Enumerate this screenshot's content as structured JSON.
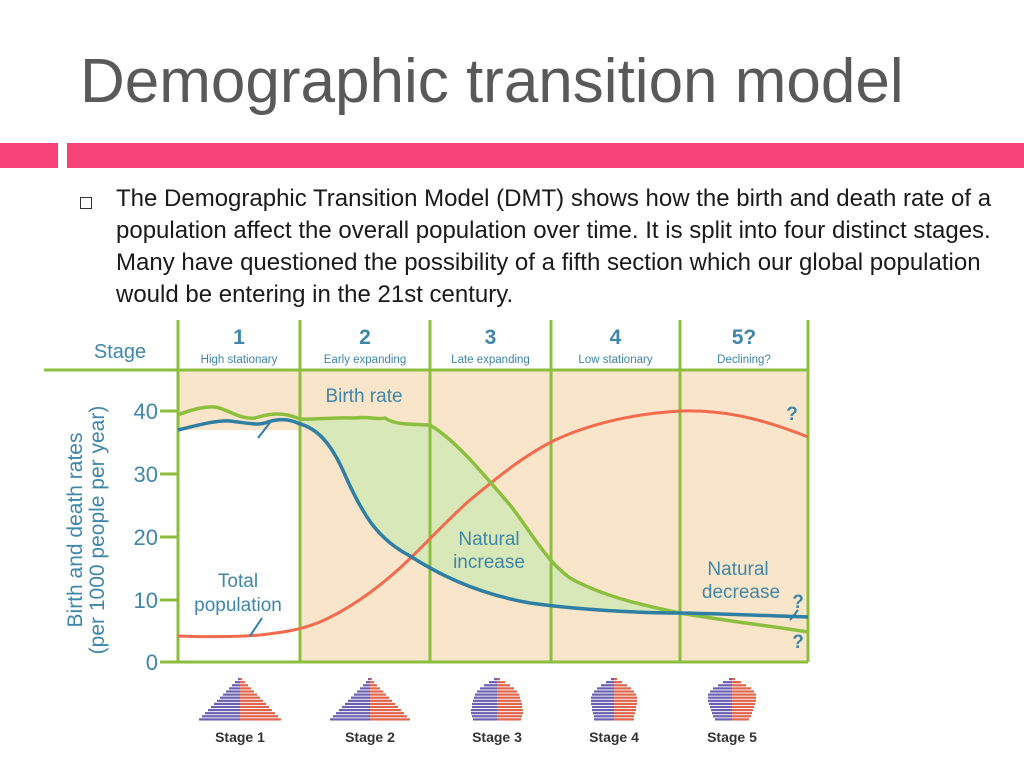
{
  "slide": {
    "title": "Demographic transition model",
    "bullet": "The Demographic Transition Model (DMT) shows how the birth and death rate of a population affect the overall population over time. It is split into four distinct stages. Many have questioned the possibility of a fifth section which our global population would be entering in the 21st century."
  },
  "diagram": {
    "stage_header": "Stage",
    "stages": [
      {
        "number": "1",
        "name": "High stationary"
      },
      {
        "number": "2",
        "name": "Early expanding"
      },
      {
        "number": "3",
        "name": "Late expanding"
      },
      {
        "number": "4",
        "name": "Low stationary"
      },
      {
        "number": "5?",
        "name": "Declining?"
      }
    ],
    "y_axis_label_line1": "Birth and death rates",
    "y_axis_label_line2": "(per 1000 people per year)",
    "y_ticks": [
      "0",
      "10",
      "20",
      "30",
      "40"
    ],
    "labels": {
      "birth_rate": "Birth rate",
      "natural_increase_1": "Natural",
      "natural_increase_2": "increase",
      "natural_decrease_1": "Natural",
      "natural_decrease_2": "decrease",
      "total_population_1": "Total",
      "total_population_2": "population",
      "question": "?"
    },
    "pyramid_labels": [
      "Stage 1",
      "Stage 2",
      "Stage 3",
      "Stage 4",
      "Stage 5"
    ],
    "colors": {
      "birth_rate": "#8cbf3f",
      "death_rate": "#2f7ea3",
      "total_population": "#f26b4f",
      "grid": "#8cbf3f",
      "text": "#3f86a8",
      "natural_increase_fill": "#d8e8b8",
      "plot_background": "#f9e5c9",
      "pyramid_male": "#6a5fb0",
      "pyramid_female": "#e0644a"
    }
  }
}
